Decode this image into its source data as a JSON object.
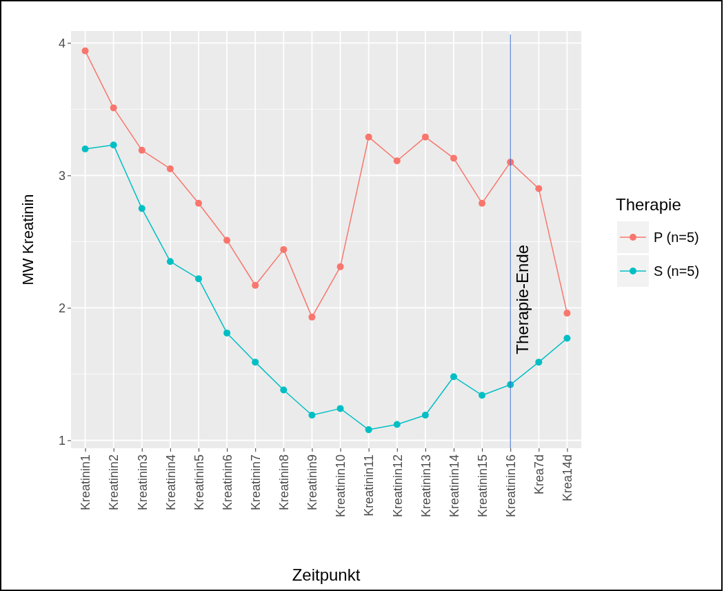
{
  "chart_data": {
    "type": "line",
    "xlabel": "Zeitpunkt",
    "ylabel": "MW Kreatinin",
    "legend_title": "Therapie",
    "categories": [
      "Kreatinin1",
      "Kreatinin2",
      "Kreatinin3",
      "Kreatinin4",
      "Kreatinin5",
      "Kreatinin6",
      "Kreatinin7",
      "Kreatinin8",
      "Kreatinin9",
      "Kreatinin10",
      "Kreatinin11",
      "Kreatinin12",
      "Kreatinin13",
      "Kreatinin14",
      "Kreatinin15",
      "Kreatinin16",
      "Krea7d",
      "Krea14d"
    ],
    "series": [
      {
        "name": "P (n=5)",
        "color": "#f8766d",
        "values": [
          3.94,
          3.51,
          3.19,
          3.05,
          2.79,
          2.51,
          2.17,
          2.44,
          1.93,
          2.31,
          3.29,
          3.11,
          3.29,
          3.13,
          2.79,
          3.1,
          2.9,
          1.96
        ]
      },
      {
        "name": "S (n=5)",
        "color": "#00bfc4",
        "values": [
          3.2,
          3.23,
          2.75,
          2.35,
          2.22,
          1.81,
          1.59,
          1.38,
          1.19,
          1.24,
          1.08,
          1.12,
          1.19,
          1.48,
          1.34,
          1.42,
          1.59,
          1.77
        ]
      }
    ],
    "ylim": [
      0.94,
      4.09
    ],
    "yticks": [
      1,
      2,
      3,
      4
    ],
    "grid": true,
    "legend": "right",
    "marker": "circle",
    "line_style": "solid",
    "ref_lines": [
      {
        "axis": "x",
        "value": "Kreatinin16",
        "label": "Therapie-Ende",
        "color": "#3366cc"
      }
    ]
  }
}
